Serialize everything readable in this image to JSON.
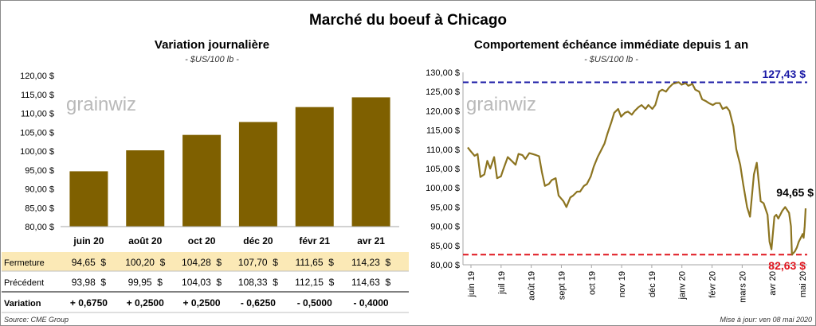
{
  "title": "Marché du boeuf à Chicago",
  "watermark": "grainwiz",
  "left_chart": {
    "title": "Variation  journalière",
    "unit": "- $US/100 lb -",
    "bar_color": "#7f6000"
  },
  "right_chart": {
    "title": "Comportement  échéance immédiate depuis 1 an",
    "unit": "- $US/100 lb -",
    "line_color": "#8c7420",
    "high_label": "127,43 $",
    "high_color": "#1a1aa6",
    "low_label": "82,63 $",
    "low_color": "#e0161f",
    "last_label": "94,65 $"
  },
  "table": {
    "rows": [
      {
        "label": "Fermeture",
        "values": [
          "94,65  $",
          "100,20  $",
          "104,28  $",
          "107,70  $",
          "111,65  $",
          "114,23  $"
        ]
      },
      {
        "label": "Précédent",
        "values": [
          "93,98  $",
          "99,95  $",
          "104,03  $",
          "108,33  $",
          "112,15  $",
          "114,63  $"
        ]
      },
      {
        "label": "Variation",
        "values": [
          "+ 0,6750",
          "+ 0,2500",
          "+ 0,2500",
          "- 0,6250",
          "- 0,5000",
          "- 0,4000"
        ]
      }
    ],
    "highlight_color": "#fbe9b6",
    "positive_color": "#138a1c",
    "negative_color": "#e0161f"
  },
  "footer": {
    "source": "Source: CME Group",
    "updated": "Mise à jour: ven 08 mai 2020"
  },
  "chart_data": [
    {
      "type": "bar",
      "title": "Variation  journalière",
      "subtitle": "- $US/100 lb -",
      "categories": [
        "juin 20",
        "août 20",
        "oct 20",
        "déc 20",
        "févr 21",
        "avr 21"
      ],
      "values": [
        94.65,
        100.2,
        104.28,
        107.7,
        111.65,
        114.23
      ],
      "ylim": [
        80,
        120
      ],
      "yticks": [
        "80,00 $",
        "85,00 $",
        "90,00 $",
        "95,00 $",
        "100,00 $",
        "105,00 $",
        "110,00 $",
        "115,00 $",
        "120,00 $"
      ],
      "grid": false
    },
    {
      "type": "line",
      "title": "Comportement  échéance immédiate depuis 1 an",
      "subtitle": "- $US/100 lb -",
      "xlim": [
        "2019-05-28",
        "2020-05-08"
      ],
      "ylim": [
        80,
        130
      ],
      "yticks": [
        "80,00 $",
        "85,00 $",
        "90,00 $",
        "95,00 $",
        "100,00 $",
        "105,00 $",
        "110,00 $",
        "115,00 $",
        "120,00 $",
        "125,00 $",
        "130,00 $"
      ],
      "xticks": [
        "juin 19",
        "juil 19",
        "août 19",
        "sept 19",
        "oct 19",
        "nov 19",
        "déc 19",
        "janv 20",
        "févr 20",
        "mars 20",
        "avr 20",
        "mai 20"
      ],
      "grid": false,
      "reference_lines": [
        {
          "label": "127,43 $",
          "value": 127.43
        },
        {
          "label": "82,63 $",
          "value": 82.63
        }
      ],
      "series": [
        {
          "points": [
            [
              "2019-05-28",
              110.5
            ],
            [
              "2019-05-31",
              109.5
            ],
            [
              "2019-06-04",
              108.3
            ],
            [
              "2019-06-07",
              108.8
            ],
            [
              "2019-06-10",
              102.8
            ],
            [
              "2019-06-14",
              103.5
            ],
            [
              "2019-06-17",
              107.0
            ],
            [
              "2019-06-20",
              105.0
            ],
            [
              "2019-06-24",
              108.0
            ],
            [
              "2019-06-27",
              102.5
            ],
            [
              "2019-07-01",
              103.0
            ],
            [
              "2019-07-03",
              104.5
            ],
            [
              "2019-07-08",
              108.0
            ],
            [
              "2019-07-12",
              107.0
            ],
            [
              "2019-07-16",
              106.0
            ],
            [
              "2019-07-19",
              108.8
            ],
            [
              "2019-07-23",
              108.5
            ],
            [
              "2019-07-26",
              107.5
            ],
            [
              "2019-07-30",
              109.0
            ],
            [
              "2019-08-02",
              108.8
            ],
            [
              "2019-08-06",
              108.5
            ],
            [
              "2019-08-09",
              108.2
            ],
            [
              "2019-08-12",
              104.0
            ],
            [
              "2019-08-15",
              100.5
            ],
            [
              "2019-08-19",
              101.0
            ],
            [
              "2019-08-22",
              102.0
            ],
            [
              "2019-08-26",
              102.5
            ],
            [
              "2019-08-29",
              98.0
            ],
            [
              "2019-09-03",
              96.5
            ],
            [
              "2019-09-06",
              95.0
            ],
            [
              "2019-09-10",
              97.5
            ],
            [
              "2019-09-13",
              98.0
            ],
            [
              "2019-09-17",
              99.0
            ],
            [
              "2019-09-20",
              99.0
            ],
            [
              "2019-09-24",
              100.5
            ],
            [
              "2019-09-27",
              101.0
            ],
            [
              "2019-10-01",
              103.0
            ],
            [
              "2019-10-04",
              105.5
            ],
            [
              "2019-10-08",
              108.0
            ],
            [
              "2019-10-11",
              109.5
            ],
            [
              "2019-10-15",
              111.5
            ],
            [
              "2019-10-18",
              114.0
            ],
            [
              "2019-10-22",
              117.0
            ],
            [
              "2019-10-25",
              119.5
            ],
            [
              "2019-10-29",
              120.5
            ],
            [
              "2019-11-01",
              118.5
            ],
            [
              "2019-11-05",
              119.5
            ],
            [
              "2019-11-08",
              119.8
            ],
            [
              "2019-11-12",
              119.0
            ],
            [
              "2019-11-15",
              120.0
            ],
            [
              "2019-11-19",
              121.0
            ],
            [
              "2019-11-22",
              121.5
            ],
            [
              "2019-11-26",
              120.5
            ],
            [
              "2019-11-29",
              121.5
            ],
            [
              "2019-12-03",
              120.5
            ],
            [
              "2019-12-06",
              121.5
            ],
            [
              "2019-12-10",
              125.0
            ],
            [
              "2019-12-13",
              125.5
            ],
            [
              "2019-12-17",
              125.0
            ],
            [
              "2019-12-20",
              126.0
            ],
            [
              "2019-12-24",
              127.0
            ],
            [
              "2019-12-30",
              127.43
            ],
            [
              "2020-01-02",
              126.8
            ],
            [
              "2020-01-06",
              127.2
            ],
            [
              "2020-01-09",
              126.5
            ],
            [
              "2020-01-13",
              127.0
            ],
            [
              "2020-01-16",
              125.5
            ],
            [
              "2020-01-20",
              125.0
            ],
            [
              "2020-01-23",
              123.0
            ],
            [
              "2020-01-27",
              122.5
            ],
            [
              "2020-01-30",
              122.0
            ],
            [
              "2020-02-03",
              121.5
            ],
            [
              "2020-02-06",
              122.0
            ],
            [
              "2020-02-10",
              122.0
            ],
            [
              "2020-02-13",
              120.5
            ],
            [
              "2020-02-17",
              121.0
            ],
            [
              "2020-02-20",
              120.0
            ],
            [
              "2020-02-24",
              116.0
            ],
            [
              "2020-02-27",
              110.0
            ],
            [
              "2020-03-02",
              106.0
            ],
            [
              "2020-03-05",
              101.0
            ],
            [
              "2020-03-09",
              95.0
            ],
            [
              "2020-03-12",
              92.5
            ],
            [
              "2020-03-16",
              103.5
            ],
            [
              "2020-03-19",
              106.5
            ],
            [
              "2020-03-23",
              96.5
            ],
            [
              "2020-03-26",
              96.0
            ],
            [
              "2020-03-30",
              93.0
            ],
            [
              "2020-04-01",
              86.0
            ],
            [
              "2020-04-03",
              84.0
            ],
            [
              "2020-04-06",
              92.5
            ],
            [
              "2020-04-08",
              93.0
            ],
            [
              "2020-04-10",
              92.0
            ],
            [
              "2020-04-14",
              94.0
            ],
            [
              "2020-04-17",
              95.0
            ],
            [
              "2020-04-21",
              93.5
            ],
            [
              "2020-04-23",
              90.0
            ],
            [
              "2020-04-24",
              82.63
            ],
            [
              "2020-04-27",
              83.5
            ],
            [
              "2020-04-29",
              84.5
            ],
            [
              "2020-05-01",
              86.0
            ],
            [
              "2020-05-04",
              87.5
            ],
            [
              "2020-05-05",
              88.0
            ],
            [
              "2020-05-06",
              87.0
            ],
            [
              "2020-05-07",
              90.0
            ],
            [
              "2020-05-08",
              94.65
            ]
          ]
        }
      ]
    }
  ]
}
